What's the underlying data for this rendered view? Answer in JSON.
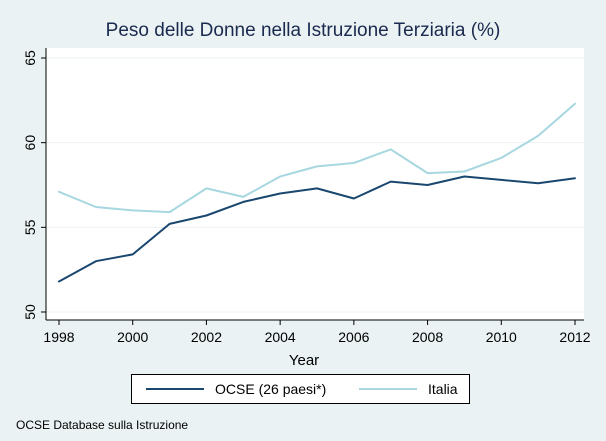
{
  "chart_data": {
    "type": "line",
    "title": "Peso delle Donne nella Istruzione Terziaria (%)",
    "xlabel": "Year",
    "ylabel": "",
    "x": [
      1998,
      1999,
      2000,
      2001,
      2002,
      2003,
      2004,
      2005,
      2006,
      2007,
      2008,
      2009,
      2010,
      2011,
      2012
    ],
    "xlim": [
      1998,
      2012
    ],
    "ylim": [
      50,
      65
    ],
    "x_ticks": [
      "1998",
      "2000",
      "2002",
      "2004",
      "2006",
      "2008",
      "2010",
      "2012"
    ],
    "y_ticks": [
      "50",
      "55",
      "60",
      "65"
    ],
    "grid": true,
    "legend_position": "bottom",
    "series": [
      {
        "name": "OCSE (26 paesi*)",
        "color": "#1a476f",
        "values": [
          51.8,
          53.0,
          53.4,
          55.2,
          55.7,
          56.5,
          57.0,
          57.3,
          56.7,
          57.7,
          57.5,
          58.0,
          57.8,
          57.6,
          57.9
        ]
      },
      {
        "name": "Italia",
        "color": "#a7d7e0",
        "values": [
          57.1,
          56.2,
          56.0,
          55.9,
          57.3,
          56.8,
          58.0,
          58.6,
          58.8,
          59.6,
          58.2,
          58.3,
          59.1,
          60.4,
          62.3
        ]
      }
    ]
  },
  "footnote": "OCSE Database sulla Istruzione",
  "colors": {
    "background": "#eaf2f3",
    "plot_background": "#ffffff",
    "grid": "#eef3f4"
  }
}
